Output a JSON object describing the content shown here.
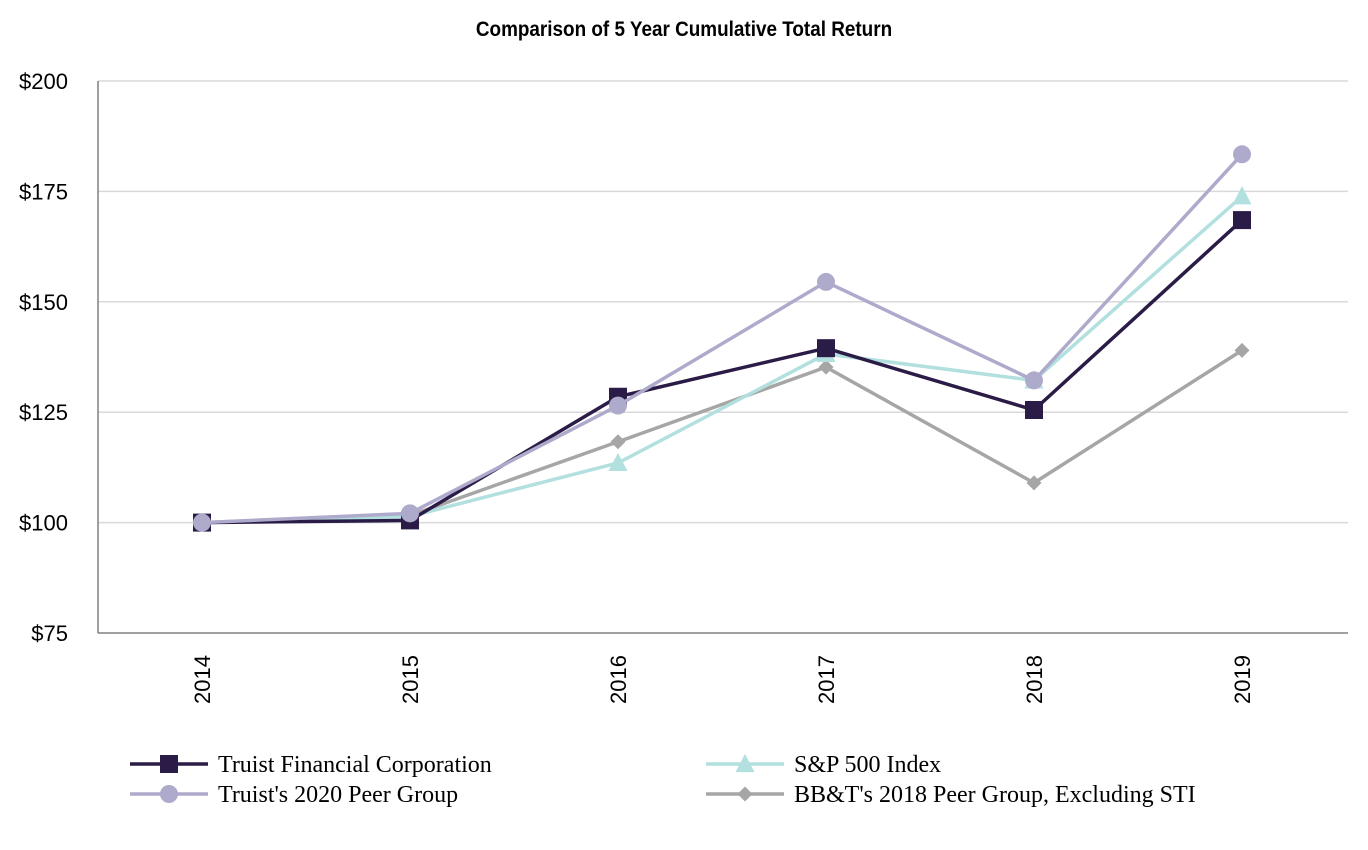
{
  "chart_data": {
    "type": "line",
    "title": "Comparison of 5 Year Cumulative Total Return",
    "xlabel": "",
    "ylabel": "",
    "categories": [
      "2014",
      "2015",
      "2016",
      "2017",
      "2018",
      "2019"
    ],
    "ylim": [
      75,
      200
    ],
    "yticks": [
      75,
      100,
      125,
      150,
      175,
      200
    ],
    "ytick_labels": [
      "$75",
      "$100",
      "$125",
      "$150",
      "$175",
      "$200"
    ],
    "grid": true,
    "legend_position": "bottom",
    "series": [
      {
        "name": "Truist Financial Corporation",
        "color": "#2b1c47",
        "marker": "square",
        "values": [
          100,
          100.5,
          128.5,
          139.5,
          125.5,
          168.5
        ]
      },
      {
        "name": "S&P 500 Index",
        "color": "#b2e0df",
        "marker": "triangle",
        "values": [
          100,
          101.4,
          113.5,
          138.2,
          132.2,
          173.9
        ]
      },
      {
        "name": "Truist's 2020 Peer Group",
        "color": "#aeaacb",
        "marker": "circle",
        "values": [
          100,
          102.1,
          126.5,
          154.5,
          132.2,
          183.4
        ]
      },
      {
        "name": "BB&T's 2018 Peer Group, Excluding STI",
        "color": "#a6a6a6",
        "marker": "diamond",
        "values": [
          100,
          101.6,
          118.3,
          135.2,
          109,
          139
        ]
      }
    ]
  }
}
